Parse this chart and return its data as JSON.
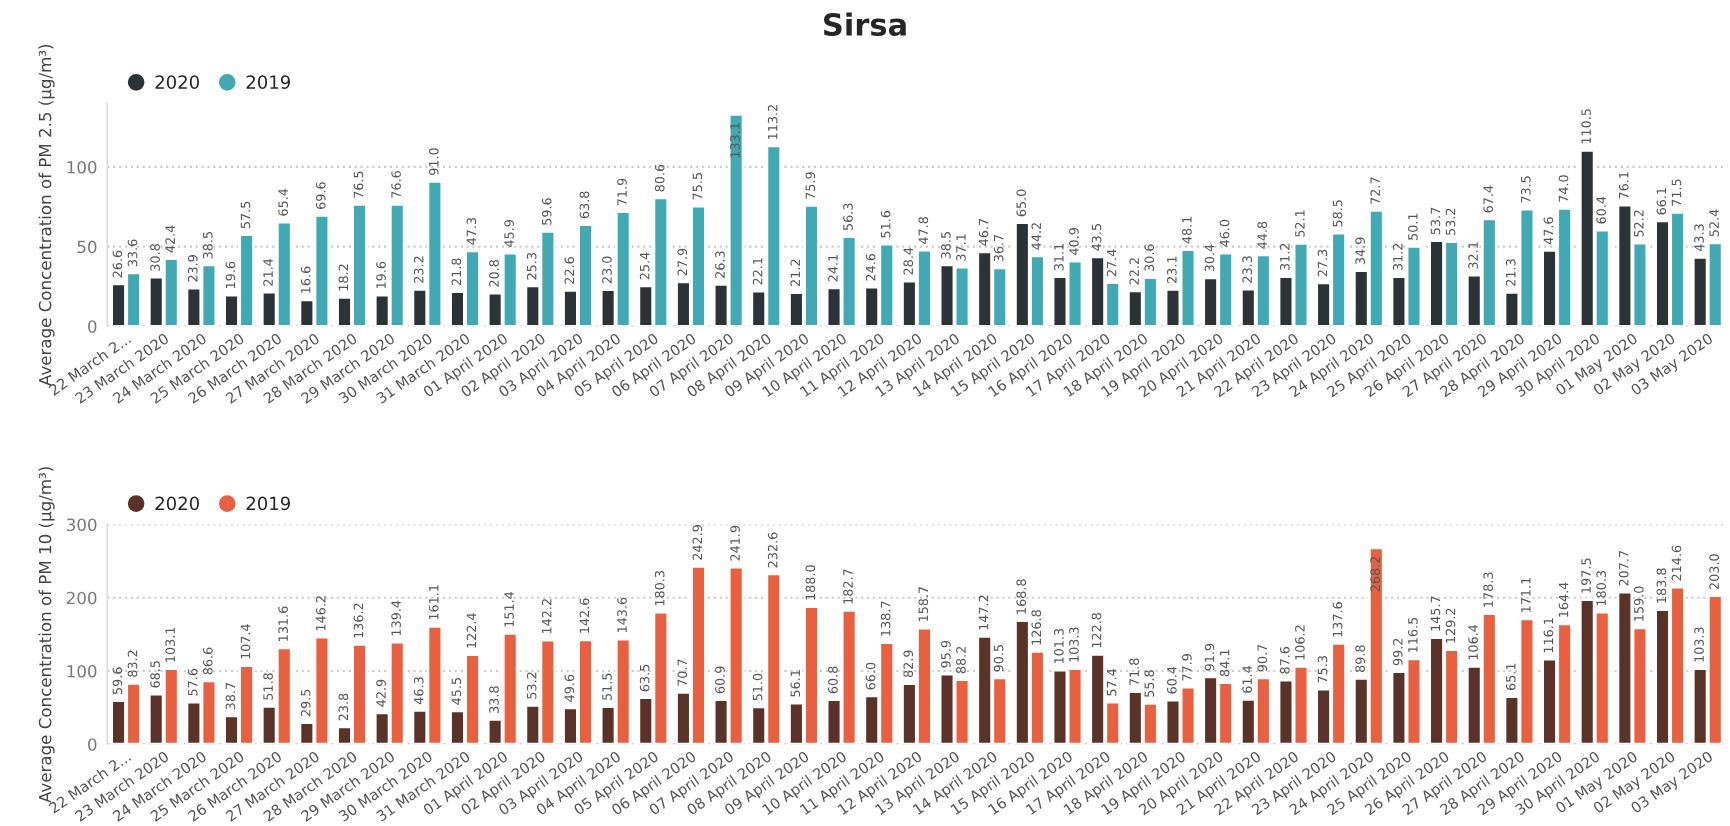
{
  "chart_data": [
    {
      "type": "bar",
      "title": "Sirsa",
      "ylabel": "Average Concentration of PM 2.5 (μg/m³)",
      "legend": "top left",
      "grid": "y",
      "ylim": [
        0,
        140
      ],
      "yticks": [
        0,
        50,
        100
      ],
      "categories": [
        "22 March 2...",
        "23 March 2020",
        "24 March 2020",
        "25 March 2020",
        "26 March 2020",
        "27 March 2020",
        "28 March 2020",
        "29 March 2020",
        "30 March 2020",
        "31 March 2020",
        "01 April 2020",
        "02 April 2020",
        "03 April 2020",
        "04 April 2020",
        "05 April 2020",
        "06 April 2020",
        "07 April 2020",
        "08 April 2020",
        "09 April 2020",
        "10 April 2020",
        "11 April 2020",
        "12 April 2020",
        "13 April 2020",
        "14 April 2020",
        "15 April 2020",
        "16 April 2020",
        "17 April 2020",
        "18 April 2020",
        "19 April 2020",
        "20 April 2020",
        "21 April 2020",
        "22 April 2020",
        "23 April 2020",
        "24 April 2020",
        "25 April 2020",
        "26 April 2020",
        "27 April 2020",
        "28 April 2020",
        "29 April 2020",
        "30 April 2020",
        "01 May 2020",
        "02 May 2020",
        "03 May 2020"
      ],
      "series": [
        {
          "name": "2020",
          "color": "#2b3336",
          "values": [
            26.6,
            30.8,
            23.9,
            19.6,
            21.4,
            16.6,
            18.2,
            19.6,
            23.2,
            21.8,
            20.8,
            25.3,
            22.6,
            23.0,
            25.4,
            27.9,
            26.3,
            22.1,
            21.2,
            24.1,
            24.6,
            28.4,
            38.5,
            46.7,
            65.0,
            31.1,
            43.5,
            22.2,
            23.1,
            30.4,
            23.3,
            31.2,
            27.3,
            34.9,
            31.2,
            53.7,
            32.1,
            21.3,
            47.6,
            110.5,
            76.1,
            66.1,
            43.3
          ],
          "value_labels": [
            "26.6",
            "30.8",
            "23.9",
            "19.6",
            "21.4",
            "16.6",
            "18.2",
            "19.6",
            "23.2",
            "21.8",
            "20.8",
            "25.3",
            "22.6",
            "23.0",
            "25.4",
            "27.9",
            "26.3",
            "22.1",
            "21.2",
            "24.1",
            "24.6",
            "28.4",
            "38.5",
            "46.7",
            "65.0",
            "31.1",
            "43.5",
            "22.2",
            "23.1",
            "30.4",
            "23.3",
            "31.2",
            "27.3",
            "34.9",
            "31.2",
            "53.7",
            "32.1",
            "21.3",
            "47.6",
            "110.5",
            "76.1",
            "66.1",
            "43.3"
          ]
        },
        {
          "name": "2019",
          "color": "#41a9b4",
          "values": [
            33.6,
            42.4,
            38.5,
            57.5,
            65.4,
            69.6,
            76.5,
            76.6,
            91.0,
            47.3,
            45.9,
            59.6,
            63.8,
            71.9,
            80.6,
            75.5,
            133.1,
            113.2,
            75.9,
            56.3,
            51.6,
            47.8,
            37.1,
            36.7,
            44.2,
            40.9,
            27.4,
            30.6,
            48.1,
            46.0,
            44.8,
            52.1,
            58.5,
            72.7,
            50.1,
            53.2,
            67.4,
            73.5,
            74.0,
            60.4,
            52.2,
            71.5,
            52.4
          ],
          "value_labels": [
            "33.6",
            "42.4",
            "38.5",
            "57.5",
            "65.4",
            "69.6",
            "76.5",
            "76.6",
            "91.0",
            "47.3",
            "45.9",
            "59.6",
            "63.8",
            "71.9",
            "80.6",
            "75.5",
            "133.1",
            "113.2",
            "75.9",
            "56.3",
            "51.6",
            "47.8",
            "37.1",
            "36.7",
            "44.2",
            "40.9",
            "27.4",
            "30.6",
            "48.1",
            "46.0",
            "44.8",
            "52.1",
            "58.5",
            "72.7",
            "50.1",
            "53.2",
            "67.4",
            "73.5",
            "74.0",
            "60.4",
            "52.2",
            "71.5",
            "52.4"
          ]
        }
      ]
    },
    {
      "type": "bar",
      "ylabel": "Average Concentration of PM 10 (μg/m³)",
      "legend": "top left",
      "grid": "y",
      "ylim": [
        0,
        300
      ],
      "yticks": [
        0,
        100,
        200,
        300
      ],
      "categories": [
        "22 March 2...",
        "23 March 2020",
        "24 March 2020",
        "25 March 2020",
        "26 March 2020",
        "27 March 2020",
        "28 March 2020",
        "29 March 2020",
        "30 March 2020",
        "31 March 2020",
        "01 April 2020",
        "02 April 2020",
        "03 April 2020",
        "04 April 2020",
        "05 April 2020",
        "06 April 2020",
        "07 April 2020",
        "08 April 2020",
        "09 April 2020",
        "10 April 2020",
        "11 April 2020",
        "12 April 2020",
        "13 April 2020",
        "14 April 2020",
        "15 April 2020",
        "16 April 2020",
        "17 April 2020",
        "18 April 2020",
        "19 April 2020",
        "20 April 2020",
        "21 April 2020",
        "22 April 2020",
        "23 April 2020",
        "24 April 2020",
        "25 April 2020",
        "26 April 2020",
        "27 April 2020",
        "28 April 2020",
        "29 April 2020",
        "30 April 2020",
        "01 May 2020",
        "02 May 2020",
        "03 May 2020"
      ],
      "series": [
        {
          "name": "2020",
          "color": "#5b3228",
          "values": [
            59.6,
            68.5,
            57.6,
            38.7,
            51.8,
            29.5,
            23.8,
            42.9,
            46.3,
            45.5,
            33.8,
            53.2,
            49.6,
            51.5,
            63.5,
            70.7,
            60.9,
            51.0,
            56.1,
            60.8,
            66.0,
            82.9,
            95.9,
            147.2,
            168.8,
            101.3,
            122.8,
            71.8,
            60.4,
            91.9,
            61.4,
            87.6,
            75.3,
            89.8,
            99.2,
            145.7,
            106.4,
            65.1,
            116.1,
            197.5,
            207.7,
            183.8,
            103.3
          ],
          "value_labels": [
            "59.6",
            "68.5",
            "57.6",
            "38.7",
            "51.8",
            "29.5",
            "23.8",
            "42.9",
            "46.3",
            "45.5",
            "33.8",
            "53.2",
            "49.6",
            "51.5",
            "63.5",
            "70.7",
            "60.9",
            "51.0",
            "56.1",
            "60.8",
            "66.0",
            "82.9",
            "95.9",
            "147.2",
            "168.8",
            "101.3",
            "122.8",
            "71.8",
            "60.4",
            "91.9",
            "61.4",
            "87.6",
            "75.3",
            "89.8",
            "99.2",
            "145.7",
            "106.4",
            "65.1",
            "116.1",
            "197.5",
            "207.7",
            "183.8",
            "103.3"
          ]
        },
        {
          "name": "2019",
          "color": "#e8603f",
          "values": [
            83.2,
            103.1,
            86.6,
            107.4,
            131.6,
            146.2,
            136.2,
            139.4,
            161.1,
            122.4,
            151.4,
            142.2,
            142.6,
            143.6,
            180.3,
            242.9,
            241.9,
            232.6,
            188.0,
            182.7,
            138.7,
            158.7,
            88.2,
            90.5,
            126.8,
            103.3,
            57.4,
            55.8,
            77.9,
            84.1,
            90.7,
            106.2,
            137.6,
            268.2,
            116.5,
            129.2,
            178.3,
            171.1,
            164.4,
            180.3,
            159.0,
            214.6,
            203.0
          ],
          "value_labels": [
            "83.2",
            "103.1",
            "86.6",
            "107.4",
            "131.6",
            "146.2",
            "136.2",
            "139.4",
            "161.1",
            "122.4",
            "151.4",
            "142.2",
            "142.6",
            "143.6",
            "180.3",
            "242.9",
            "241.9",
            "232.6",
            "188.0",
            "182.7",
            "138.7",
            "158.7",
            "88.2",
            "90.5",
            "126.8",
            "103.3",
            "57.4",
            "55.8",
            "77.9",
            "84.1",
            "90.7",
            "106.2",
            "137.6",
            "268.2",
            "116.5",
            "129.2",
            "178.3",
            "171.1",
            "164.4",
            "180.3",
            "159.0",
            "214.6",
            "203.0"
          ]
        }
      ]
    }
  ]
}
